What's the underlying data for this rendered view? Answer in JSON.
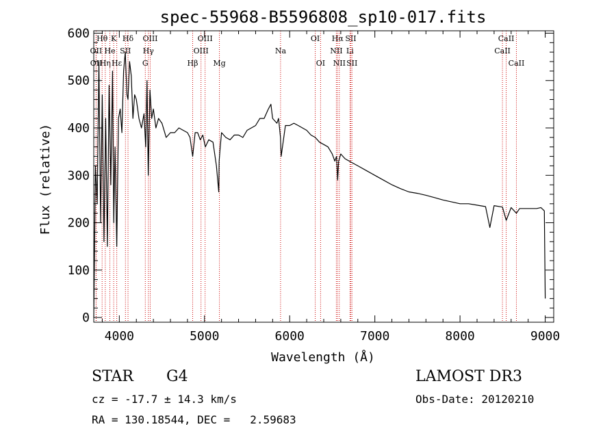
{
  "chart_data": {
    "type": "line",
    "title": "spec-55968-B5596808_sp10-017.fits",
    "xlabel": "Wavelength (Å)",
    "ylabel": "Flux (relative)",
    "xlim": [
      3700,
      9100
    ],
    "ylim": [
      -10,
      605
    ],
    "xticks": [
      4000,
      5000,
      6000,
      7000,
      8000,
      9000
    ],
    "yticks": [
      0,
      100,
      200,
      300,
      400,
      500,
      600
    ],
    "grid": false,
    "series": [
      {
        "name": "spectrum",
        "color": "#000000",
        "x": [
          3700,
          3720,
          3740,
          3760,
          3780,
          3800,
          3820,
          3840,
          3860,
          3880,
          3900,
          3920,
          3935,
          3950,
          3970,
          3990,
          4010,
          4030,
          4050,
          4070,
          4090,
          4102,
          4120,
          4140,
          4160,
          4180,
          4200,
          4230,
          4260,
          4290,
          4310,
          4325,
          4340,
          4360,
          4380,
          4400,
          4430,
          4460,
          4500,
          4550,
          4600,
          4650,
          4700,
          4750,
          4800,
          4830,
          4861,
          4890,
          4920,
          4950,
          4980,
          5010,
          5050,
          5100,
          5140,
          5167,
          5172,
          5185,
          5200,
          5250,
          5300,
          5350,
          5400,
          5450,
          5500,
          5550,
          5600,
          5650,
          5700,
          5750,
          5780,
          5800,
          5850,
          5870,
          5892,
          5900,
          5950,
          6000,
          6050,
          6100,
          6150,
          6200,
          6250,
          6300,
          6350,
          6400,
          6450,
          6500,
          6530,
          6550,
          6563,
          6575,
          6600,
          6650,
          6700,
          6750,
          6800,
          6900,
          7000,
          7100,
          7200,
          7300,
          7400,
          7500,
          7600,
          7700,
          7800,
          7900,
          8000,
          8100,
          8200,
          8300,
          8350,
          8400,
          8498,
          8542,
          8600,
          8662,
          8700,
          8800,
          8900,
          8950,
          8990,
          9000
        ],
        "values": [
          0,
          320,
          240,
          540,
          200,
          470,
          160,
          420,
          150,
          490,
          280,
          520,
          200,
          360,
          150,
          420,
          440,
          390,
          520,
          560,
          470,
          460,
          540,
          510,
          420,
          470,
          460,
          420,
          400,
          430,
          360,
          500,
          300,
          480,
          420,
          440,
          400,
          420,
          410,
          380,
          390,
          390,
          400,
          395,
          390,
          380,
          340,
          390,
          390,
          375,
          385,
          360,
          375,
          370,
          320,
          265,
          330,
          360,
          390,
          380,
          375,
          385,
          385,
          380,
          395,
          400,
          405,
          420,
          420,
          440,
          450,
          420,
          410,
          420,
          380,
          340,
          405,
          405,
          410,
          405,
          400,
          395,
          385,
          380,
          370,
          365,
          360,
          345,
          330,
          340,
          290,
          330,
          345,
          335,
          330,
          325,
          320,
          310,
          300,
          290,
          280,
          272,
          265,
          262,
          258,
          253,
          248,
          244,
          240,
          240,
          237,
          234,
          190,
          236,
          233,
          205,
          232,
          220,
          230,
          230,
          230,
          232,
          225,
          40
        ]
      }
    ],
    "line_markers": [
      {
        "label": "Hθ",
        "x": 3798,
        "row": 0
      },
      {
        "label": "OII",
        "x": 3727,
        "row": 1
      },
      {
        "label": "OII",
        "x": 3729,
        "row": 2
      },
      {
        "label": "Hη",
        "x": 3835,
        "row": 2
      },
      {
        "label": "K",
        "x": 3934,
        "row": 0
      },
      {
        "label": "He",
        "x": 3889,
        "row": 1
      },
      {
        "label": "Hε",
        "x": 3970,
        "row": 2
      },
      {
        "label": "Hδ",
        "x": 4102,
        "row": 0
      },
      {
        "label": "SII",
        "x": 4072,
        "row": 1
      },
      {
        "label": "OIII",
        "x": 4363,
        "row": 0
      },
      {
        "label": "Hγ",
        "x": 4341,
        "row": 1
      },
      {
        "label": "G",
        "x": 4305,
        "row": 2
      },
      {
        "label": "OIII",
        "x": 5007,
        "row": 0
      },
      {
        "label": "OIII",
        "x": 4959,
        "row": 1
      },
      {
        "label": "Hβ",
        "x": 4861,
        "row": 2
      },
      {
        "label": "Mg",
        "x": 5175,
        "row": 2
      },
      {
        "label": "Na",
        "x": 5893,
        "row": 1
      },
      {
        "label": "OI",
        "x": 6300,
        "row": 0
      },
      {
        "label": "OI",
        "x": 6363,
        "row": 2
      },
      {
        "label": "Hα",
        "x": 6563,
        "row": 0
      },
      {
        "label": "SII",
        "x": 6717,
        "row": 0
      },
      {
        "label": "NII",
        "x": 6548,
        "row": 1
      },
      {
        "label": "Li",
        "x": 6708,
        "row": 1
      },
      {
        "label": "NII",
        "x": 6583,
        "row": 2
      },
      {
        "label": "SII",
        "x": 6731,
        "row": 2
      },
      {
        "label": "CaII",
        "x": 8542,
        "row": 0
      },
      {
        "label": "CaII",
        "x": 8498,
        "row": 1
      },
      {
        "label": "CaII",
        "x": 8662,
        "row": 2
      }
    ]
  },
  "footer": {
    "object_class": "STAR",
    "subclass": "G4",
    "survey": "LAMOST DR3",
    "redshift": "cz = -17.7 ± 14.3 km/s",
    "obs_date": "Obs-Date: 20120210",
    "coords": "RA = 130.18544, DEC =   2.59683"
  },
  "colors": {
    "marker": "#cc0000",
    "axis": "#000000",
    "spectrum": "#000000"
  }
}
